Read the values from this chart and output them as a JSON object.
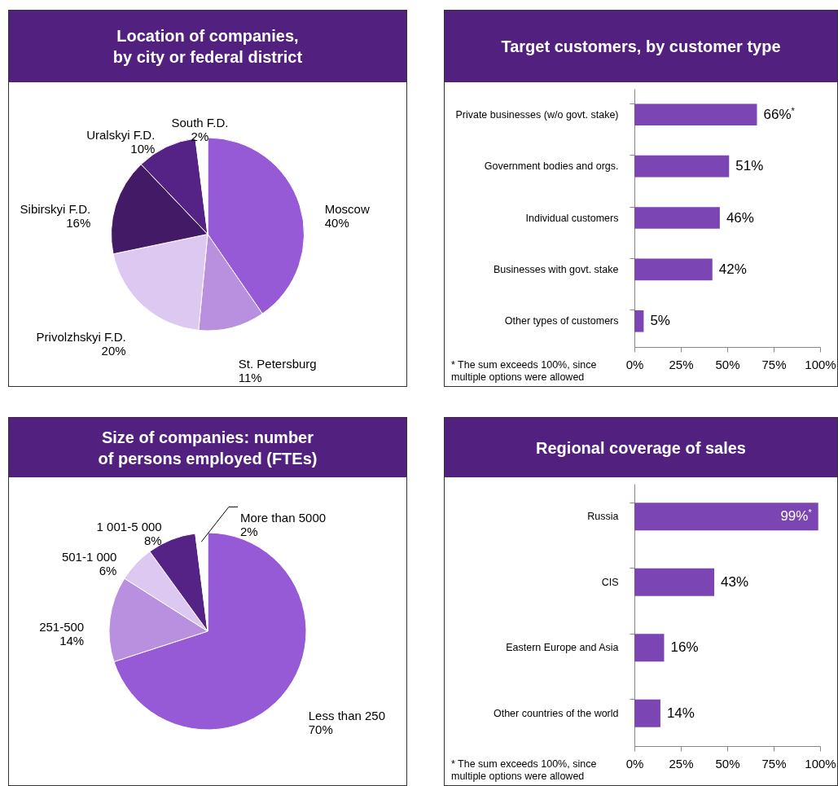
{
  "chart_data": [
    {
      "type": "pie",
      "title": "Location of companies, by city or federal district",
      "categories": [
        "Moscow",
        "St. Petersburg",
        "Privolzhskyi F.D.",
        "Sibirskyi F.D.",
        "Uralskyi F.D.",
        "South F.D."
      ],
      "values": [
        40,
        11,
        20,
        16,
        10,
        2
      ],
      "colors": [
        "#965ad6",
        "#b98fe0",
        "#dcc8f0",
        "#421a66",
        "#552285",
        "#ffffff"
      ],
      "value_labels": [
        "40%",
        "11%",
        "20%",
        "16%",
        "10%",
        "2%"
      ]
    },
    {
      "type": "bar",
      "orientation": "horizontal",
      "title": "Target customers, by customer type",
      "categories": [
        "Private businesses (w/o govt. stake)",
        "Government bodies and orgs.",
        "Individual customers",
        "Businesses with govt. stake",
        "Other types of customers"
      ],
      "values": [
        66,
        51,
        46,
        42,
        5
      ],
      "color": "#7b45b3",
      "value_labels": [
        "66%$^{*}$",
        "51%",
        "46%",
        "42%",
        "5%"
      ],
      "xlim": [
        0,
        100
      ],
      "xticks": [
        {
          "value": 0,
          "label": "0%"
        },
        {
          "value": 25,
          "label": "25%"
        },
        {
          "value": 50,
          "label": "50%"
        },
        {
          "value": 75,
          "label": "75%"
        },
        {
          "value": 100,
          "label": "100%"
        }
      ],
      "annotations": [
        "* The sum exceeds 100%, since multiple options were allowed"
      ]
    },
    {
      "type": "pie",
      "title": "Size of companies: number of persons employed (FTEs)",
      "categories": [
        "Less than 250",
        "251-500",
        "501-1 000",
        "1 001-5 000",
        "More than 5000"
      ],
      "values": [
        70,
        14,
        6,
        8,
        2
      ],
      "colors": [
        "#965ad6",
        "#b98fe0",
        "#dcc8f0",
        "#552285",
        "#ffffff"
      ],
      "value_labels": [
        "70%",
        "14%",
        "6%",
        "8%",
        "2%"
      ]
    },
    {
      "type": "bar",
      "orientation": "horizontal",
      "title": "Regional coverage of sales",
      "categories": [
        "Russia",
        "CIS",
        "Eastern Europe and Asia",
        "Other countries of the world"
      ],
      "values": [
        99,
        43,
        16,
        14
      ],
      "color": "#7b45b3",
      "value_labels": [
        "99%$^{*}$",
        "43%",
        "16%",
        "14%"
      ],
      "xlim": [
        0,
        100
      ],
      "xticks": [
        {
          "value": 0,
          "label": "0%"
        },
        {
          "value": 25,
          "label": "25%"
        },
        {
          "value": 50,
          "label": "50%"
        },
        {
          "value": 75,
          "label": "75%"
        },
        {
          "value": 100,
          "label": "100%"
        }
      ],
      "annotations": [
        "* The sum exceeds 100%, since multiple options were allowed"
      ]
    }
  ]
}
